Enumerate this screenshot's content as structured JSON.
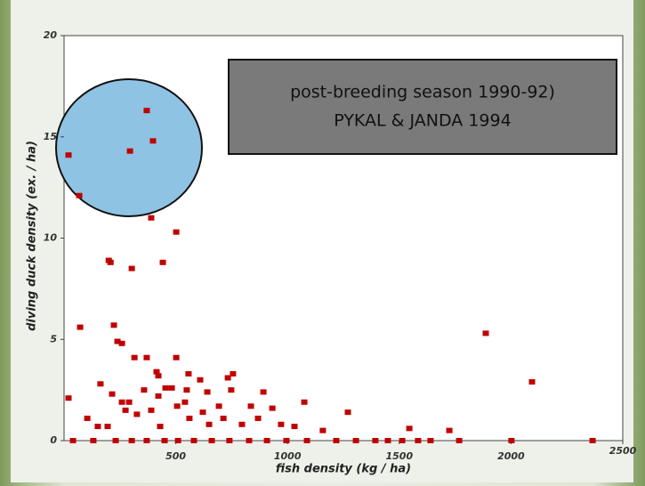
{
  "chart_data": {
    "type": "scatter",
    "xlabel": "fish density (kg / ha)",
    "ylabel": "diving duck density (ex. / ha)",
    "annotations": [
      "post-breeding season 1990-92)",
      "PYKAL & JANDA 1994"
    ],
    "xlim": [
      0,
      2500
    ],
    "ylim": [
      0,
      20
    ],
    "xticks": [
      500,
      1000,
      1500,
      2000,
      2500
    ],
    "yticks": [
      0,
      5,
      10,
      15,
      20
    ],
    "series": [
      {
        "color": "#c00000",
        "x": [
          20,
          370,
          398,
          295,
          68,
          390,
          502,
          200,
          208,
          442,
          303,
          72,
          223,
          239,
          259,
          502,
          315,
          370,
          414,
          422,
          756,
          733,
          609,
          1887,
          2094,
          20,
          163,
          215,
          358,
          454,
          482,
          557,
          549,
          641,
          748,
          892,
          1075,
          932,
          836,
          104,
          151,
          259,
          275,
          291,
          326,
          390,
          422,
          506,
          541,
          561,
          621,
          693,
          649,
          713,
          868,
          1031,
          1158,
          1270,
          1545,
          1724,
          195,
          430,
          796,
          971,
          40,
          131,
          231,
          303,
          370,
          450,
          510,
          581,
          661,
          740,
          828,
          908,
          995,
          1087,
          1218,
          1306,
          1393,
          1449,
          1513,
          1584,
          1640,
          1768,
          2002,
          2365
        ],
        "values": [
          14.1,
          16.3,
          14.8,
          14.3,
          12.1,
          11.0,
          10.3,
          8.9,
          8.8,
          8.8,
          8.5,
          5.6,
          5.7,
          4.9,
          4.8,
          4.1,
          4.1,
          4.1,
          3.4,
          3.2,
          3.3,
          3.1,
          3.0,
          5.3,
          2.9,
          2.1,
          2.8,
          2.3,
          2.5,
          2.6,
          2.6,
          3.3,
          2.5,
          2.4,
          2.5,
          2.4,
          1.9,
          1.6,
          1.7,
          1.1,
          0.7,
          1.9,
          1.5,
          1.9,
          1.3,
          1.5,
          2.2,
          1.7,
          1.9,
          1.1,
          1.4,
          1.7,
          0.8,
          1.1,
          1.1,
          0.7,
          0.5,
          1.4,
          0.6,
          0.5,
          0.7,
          0.7,
          0.8,
          0.8,
          0,
          0,
          0,
          0,
          0,
          0,
          0,
          0,
          0,
          0,
          0,
          0,
          0,
          0,
          0,
          0,
          0,
          0,
          0,
          0,
          0,
          0,
          0,
          0
        ]
      }
    ]
  }
}
